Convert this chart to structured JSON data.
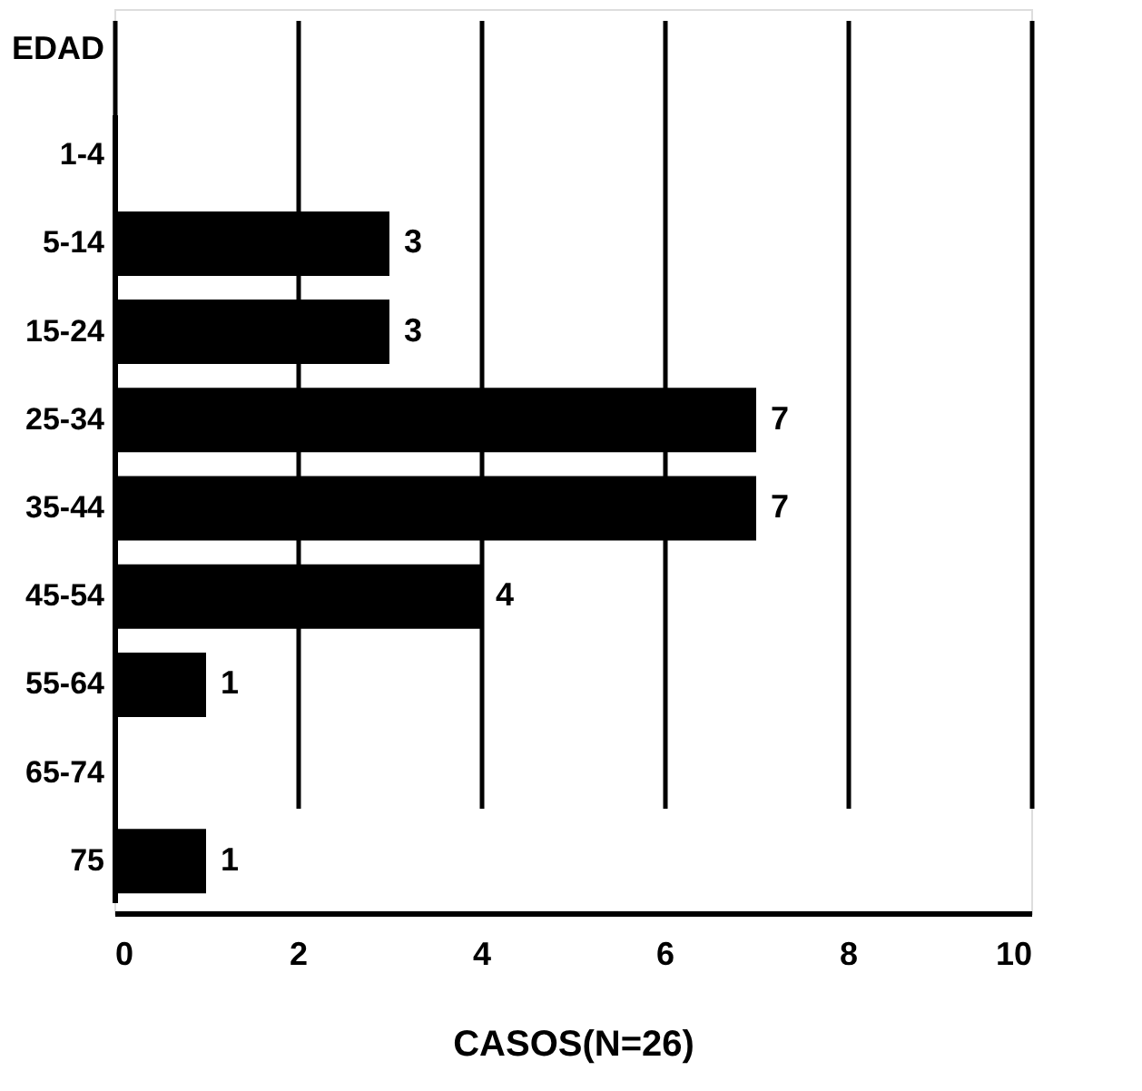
{
  "chart_data": {
    "type": "bar",
    "orientation": "horizontal",
    "ylabel": "EDAD",
    "xlabel": "CASOS(N=26)",
    "categories": [
      "1-4",
      "5-14",
      "15-24",
      "25-34",
      "35-44",
      "45-54",
      "55-64",
      "65-74",
      "75"
    ],
    "values": [
      null,
      3,
      3,
      7,
      7,
      4,
      1,
      null,
      1
    ],
    "value_labels": [
      null,
      "3",
      "3",
      "7",
      "7",
      "4",
      "1",
      null,
      "1"
    ],
    "color": "#000000",
    "xlim": [
      0,
      10
    ],
    "xticks": [
      0,
      2,
      4,
      6,
      8,
      10
    ],
    "grid": "x"
  }
}
